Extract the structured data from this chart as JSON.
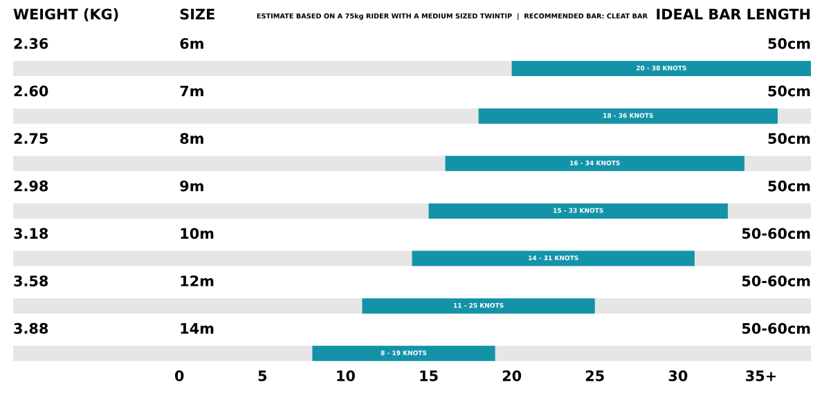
{
  "chart_data": {
    "type": "bar",
    "orientation": "horizontal",
    "title": "ESTIMATE BASED ON A 75kg RIDER WITH A MEDIUM SIZED TWINTIP  |  RECOMMENDED BAR: CLEAT BAR",
    "ylabel": "SIZE",
    "categories": [
      "6m",
      "7m",
      "8m",
      "9m",
      "10m",
      "12m",
      "14m"
    ],
    "base": [
      20,
      18,
      16,
      15,
      14,
      11,
      8
    ],
    "values": [
      18,
      18,
      18,
      18,
      17,
      14,
      11
    ],
    "color": "#1493a8",
    "xlim": [
      -10,
      38
    ],
    "xticks": [
      0,
      5,
      10,
      15,
      20,
      25,
      30,
      {
        "value": 35,
        "label": "35+"
      }
    ],
    "grid": false,
    "legend": false,
    "annotations": [
      "WEIGHT (KG)",
      "IDEAL BAR LENGTH",
      "2.36",
      "50cm",
      "20 - 38 KNOTS",
      "2.60",
      "50cm",
      "18 - 36 KNOTS",
      "2.75",
      "50cm",
      "16 - 34 KNOTS",
      "2.98",
      "50cm",
      "15 - 33 KNOTS",
      "3.18",
      "50-60cm",
      "14 - 31 KNOTS",
      "3.58",
      "50-60cm",
      "11 - 25 KNOTS",
      "3.88",
      "50-60cm",
      "8 - 19 KNOTS"
    ]
  }
}
